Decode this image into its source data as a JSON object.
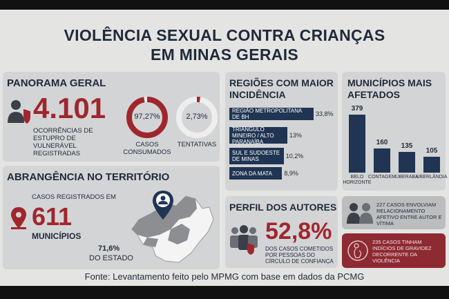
{
  "title_line1": "VIOLÊNCIA SEXUAL CONTRA CRIANÇAS",
  "title_line2": "EM MINAS GERAIS",
  "panorama": {
    "heading": "PANORAMA GERAL",
    "total": "4.101",
    "total_caption": "OCORRÊNCIAS DE ESTUPRO DE VULNERÁVEL REGISTRADAS",
    "consumados_pct": "97,27%",
    "consumados_label": "CASOS CONSUMADOS",
    "tentativas_pct": "2,73%",
    "tentativas_label": "TENTATIVAS"
  },
  "abrangencia": {
    "heading": "ABRANGÊNCIA NO TERRITÓRIO",
    "casos_label": "CASOS REGISTRADOS EM",
    "municipios_num": "611",
    "municipios_label": "MUNICÍPIOS",
    "estado_pct": "71,6%",
    "estado_label": "DO ESTADO"
  },
  "regioes": {
    "heading_line1": "REGIÕES COM MAIOR",
    "heading_line2": "INCIDÊNCIA"
  },
  "municipios": {
    "heading_line1": "MUNICÍPIOS MAIS",
    "heading_line2": "AFETADOS"
  },
  "autores": {
    "heading": "PERFIL DOS AUTORES",
    "pct": "52,8%",
    "caption": "DOS CASOS COMETIDOS POR PESSOAS DO CÍRCULO DE CONFIANÇA"
  },
  "notes": {
    "relacionamento": "227 CASOS ENVOLVIAM RELACIONAMENTO AFETIVO ENTRE AUTOR E VÍTIMA",
    "gravidez": "235 CASOS TINHAM INDÍCIOS DE GRAVIDEZ DECORRENTE DA VIOLÊNCIA"
  },
  "footer": "Fonte: Levantamento feito pelo MPMG com base em dados da PCMG",
  "colors": {
    "accent_red": "#a0262e",
    "navy": "#203553",
    "panel": "#d3d4d5"
  },
  "chart_data": [
    {
      "type": "pie",
      "categories": [
        "CASOS CONSUMADOS",
        "TENTATIVAS"
      ],
      "values": [
        97.27,
        2.73
      ]
    },
    {
      "type": "bar",
      "orientation": "horizontal",
      "categories": [
        "REGIÃO METROPOLITANA DE BH",
        "TRIÂNGULO MINEIRO / ALTO PARANAÍBA",
        "SUL E SUDOESTE DE MINAS",
        "ZONA DA MATA"
      ],
      "value_labels": [
        "33,8%",
        "13%",
        "10,2%",
        "8,9%"
      ],
      "values": [
        33.8,
        13,
        10.2,
        8.9
      ]
    },
    {
      "type": "bar",
      "categories": [
        "BELO HORIZONTE",
        "CONTAGEM",
        "UBERABA",
        "UBERLÂNDIA"
      ],
      "values": [
        379,
        160,
        135,
        105
      ]
    }
  ]
}
